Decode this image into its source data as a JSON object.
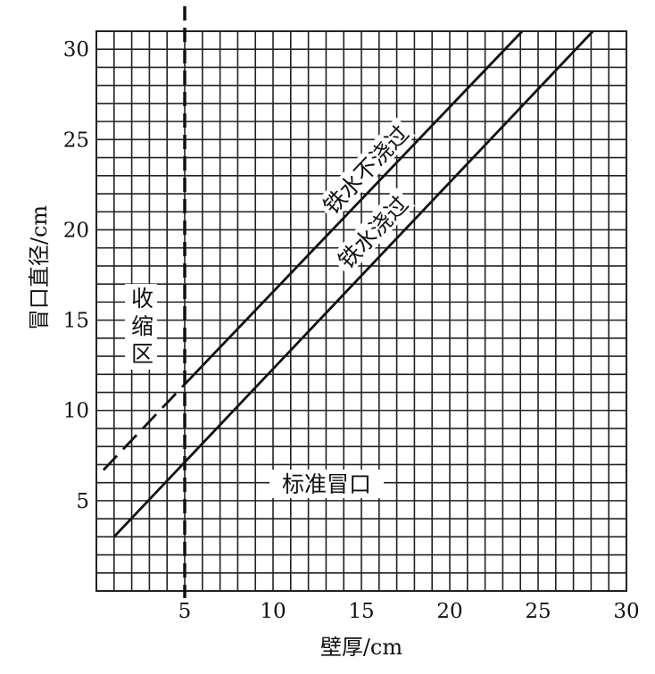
{
  "chart_data": {
    "type": "line",
    "title": "",
    "xlabel": "壁厚/cm",
    "ylabel": "冒口直径/cm",
    "xlim": [
      0,
      30
    ],
    "ylim": [
      0,
      31
    ],
    "grid": true,
    "grid_step": 1,
    "xticks": [
      5,
      10,
      15,
      20,
      25,
      30
    ],
    "yticks": [
      5,
      10,
      15,
      20,
      25,
      30
    ],
    "colors": {
      "line": "#111111",
      "grid": "#222222",
      "background": "#ffffff"
    },
    "series": [
      {
        "name": "铁水不浇过",
        "style": "dashed",
        "points": [
          [
            0.4,
            6.7
          ],
          [
            5,
            11.45
          ]
        ]
      },
      {
        "name": "铁水不浇过",
        "style": "solid",
        "points": [
          [
            5,
            11.45
          ],
          [
            24.1,
            31
          ]
        ]
      },
      {
        "name": "铁水浇过",
        "style": "solid",
        "points": [
          [
            1.0,
            3.0
          ],
          [
            28.1,
            31
          ]
        ]
      }
    ],
    "reference_lines": [
      {
        "axis": "x",
        "value": 5,
        "style": "dashed"
      }
    ],
    "annotations": {
      "upper_line": "铁水不浇过",
      "lower_line": "铁水浇过",
      "shrink_zone": "收缩区",
      "standard_riser": "标准冒口"
    }
  }
}
